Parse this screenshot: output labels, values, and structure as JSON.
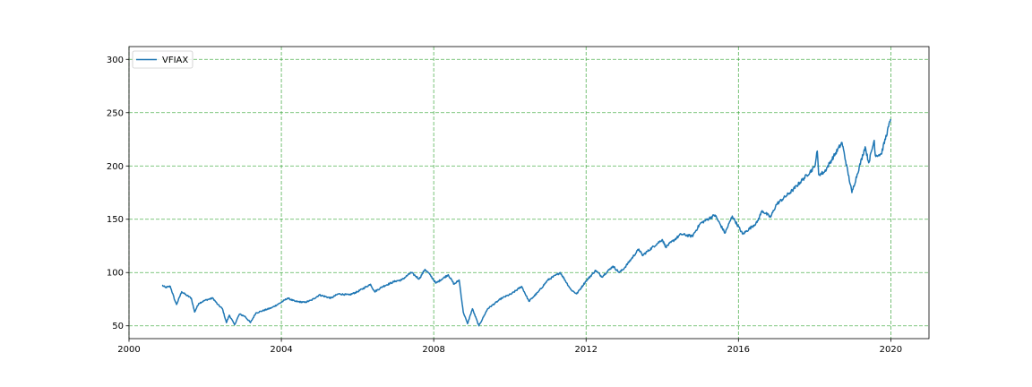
{
  "chart_data": {
    "type": "line",
    "title": "",
    "xlabel": "",
    "ylabel": "",
    "xlim": [
      "2000-01-01",
      "2021-01-01"
    ],
    "ylim": [
      38,
      312
    ],
    "grid": true,
    "grid_color": "#2ca02c",
    "x_ticks": [
      "2000",
      "2004",
      "2008",
      "2012",
      "2016",
      "2020"
    ],
    "y_ticks": [
      50,
      100,
      150,
      200,
      250,
      300
    ],
    "legend_position": "top-left",
    "series": [
      {
        "name": "VFIAX",
        "color": "#1f77b4",
        "points": [
          [
            "2000-11-13",
            88
          ],
          [
            "2000-12-15",
            86
          ],
          [
            "2001-01-31",
            87
          ],
          [
            "2001-03-15",
            74
          ],
          [
            "2001-04-01",
            70
          ],
          [
            "2001-05-20",
            82
          ],
          [
            "2001-07-01",
            79
          ],
          [
            "2001-08-20",
            76
          ],
          [
            "2001-09-21",
            63
          ],
          [
            "2001-10-31",
            71
          ],
          [
            "2001-12-31",
            74
          ],
          [
            "2002-03-15",
            76
          ],
          [
            "2002-05-01",
            70
          ],
          [
            "2002-06-15",
            66
          ],
          [
            "2002-07-23",
            53
          ],
          [
            "2002-08-20",
            60
          ],
          [
            "2002-10-09",
            51
          ],
          [
            "2002-11-25",
            61
          ],
          [
            "2003-01-15",
            59
          ],
          [
            "2003-03-11",
            53
          ],
          [
            "2003-05-01",
            62
          ],
          [
            "2003-07-01",
            64
          ],
          [
            "2003-10-01",
            67
          ],
          [
            "2003-12-31",
            72
          ],
          [
            "2004-03-01",
            76
          ],
          [
            "2004-05-10",
            73
          ],
          [
            "2004-08-12",
            72
          ],
          [
            "2004-10-15",
            74
          ],
          [
            "2004-12-31",
            79
          ],
          [
            "2005-04-20",
            76
          ],
          [
            "2005-07-01",
            80
          ],
          [
            "2005-10-13",
            79
          ],
          [
            "2005-12-31",
            82
          ],
          [
            "2006-05-05",
            89
          ],
          [
            "2006-06-13",
            82
          ],
          [
            "2006-09-01",
            87
          ],
          [
            "2006-12-31",
            92
          ],
          [
            "2007-02-27",
            93
          ],
          [
            "2007-05-30",
            100
          ],
          [
            "2007-08-15",
            94
          ],
          [
            "2007-10-09",
            103
          ],
          [
            "2007-11-26",
            98
          ],
          [
            "2008-01-22",
            90
          ],
          [
            "2008-05-19",
            98
          ],
          [
            "2008-07-15",
            89
          ],
          [
            "2008-09-01",
            93
          ],
          [
            "2008-10-10",
            63
          ],
          [
            "2008-11-20",
            52
          ],
          [
            "2009-01-06",
            66
          ],
          [
            "2009-03-09",
            50
          ],
          [
            "2009-06-01",
            66
          ],
          [
            "2009-10-15",
            76
          ],
          [
            "2010-01-15",
            80
          ],
          [
            "2010-04-23",
            87
          ],
          [
            "2010-07-02",
            73
          ],
          [
            "2010-10-01",
            82
          ],
          [
            "2010-12-31",
            93
          ],
          [
            "2011-04-29",
            100
          ],
          [
            "2011-08-08",
            84
          ],
          [
            "2011-10-03",
            80
          ],
          [
            "2011-12-31",
            92
          ],
          [
            "2012-04-02",
            102
          ],
          [
            "2012-06-01",
            96
          ],
          [
            "2012-09-14",
            106
          ],
          [
            "2012-11-15",
            100
          ],
          [
            "2012-12-31",
            104
          ],
          [
            "2013-05-21",
            122
          ],
          [
            "2013-06-24",
            116
          ],
          [
            "2013-12-31",
            131
          ],
          [
            "2014-02-03",
            124
          ],
          [
            "2014-06-30",
            136
          ],
          [
            "2014-10-15",
            134
          ],
          [
            "2014-12-31",
            146
          ],
          [
            "2015-05-21",
            154
          ],
          [
            "2015-08-25",
            137
          ],
          [
            "2015-11-03",
            153
          ],
          [
            "2016-02-11",
            136
          ],
          [
            "2016-06-27",
            147
          ],
          [
            "2016-08-15",
            158
          ],
          [
            "2016-11-04",
            152
          ],
          [
            "2016-12-31",
            164
          ],
          [
            "2017-06-01",
            177
          ],
          [
            "2017-12-31",
            199
          ],
          [
            "2018-01-26",
            214
          ],
          [
            "2018-02-08",
            192
          ],
          [
            "2018-04-02",
            194
          ],
          [
            "2018-09-20",
            222
          ],
          [
            "2018-12-24",
            175
          ],
          [
            "2019-04-30",
            218
          ],
          [
            "2019-06-03",
            203
          ],
          [
            "2019-07-26",
            224
          ],
          [
            "2019-08-05",
            210
          ],
          [
            "2019-10-01",
            211
          ],
          [
            "2019-12-31",
            244
          ]
        ]
      }
    ]
  }
}
